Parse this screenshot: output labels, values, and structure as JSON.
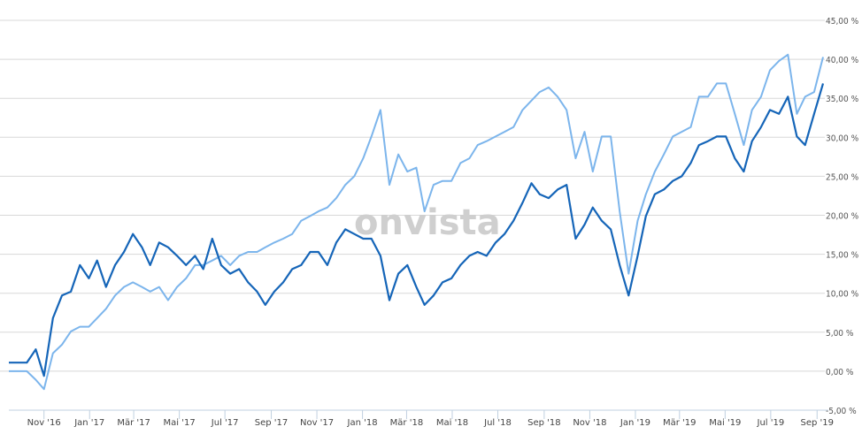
{
  "watermark": "onvista",
  "chart_data": {
    "type": "line",
    "title": "",
    "xlabel": "",
    "ylabel": "",
    "ylim": [
      -5,
      45
    ],
    "xlim": [
      "2016-09-15",
      "2019-09-09"
    ],
    "grid": true,
    "legend": "none",
    "y_ticks": [
      "45,00 %",
      "40,00 %",
      "35,00 %",
      "30,00 %",
      "25,00 %",
      "20,00 %",
      "15,00 %",
      "10,00 %",
      "5,00 %",
      "0,00 %",
      "-5,00 %"
    ],
    "y_tick_values": [
      45,
      40,
      35,
      30,
      25,
      20,
      15,
      10,
      5,
      0,
      -5
    ],
    "x_ticks": [
      {
        "label": "Nov '16",
        "date": "2016-11-01"
      },
      {
        "label": "Jan '17",
        "date": "2017-01-01"
      },
      {
        "label": "Mär '17",
        "date": "2017-03-01"
      },
      {
        "label": "Mai '17",
        "date": "2017-05-01"
      },
      {
        "label": "Jul '17",
        "date": "2017-07-01"
      },
      {
        "label": "Sep '17",
        "date": "2017-09-01"
      },
      {
        "label": "Nov '17",
        "date": "2017-11-01"
      },
      {
        "label": "Jan '18",
        "date": "2018-01-01"
      },
      {
        "label": "Mär '18",
        "date": "2018-03-01"
      },
      {
        "label": "Mai '18",
        "date": "2018-05-01"
      },
      {
        "label": "Jul '18",
        "date": "2018-07-01"
      },
      {
        "label": "Sep '18",
        "date": "2018-09-01"
      },
      {
        "label": "Nov '18",
        "date": "2018-11-01"
      },
      {
        "label": "Jan '19",
        "date": "2019-01-01"
      },
      {
        "label": "Mär '19",
        "date": "2019-03-01"
      },
      {
        "label": "Mai '19",
        "date": "2019-05-01"
      },
      {
        "label": "Jul '19",
        "date": "2019-07-01"
      },
      {
        "label": "Sep '19",
        "date": "2019-09-01"
      }
    ],
    "x": [
      "2016-09-15",
      "2016-09-27",
      "2016-10-09",
      "2016-10-21",
      "2016-11-01",
      "2016-11-13",
      "2016-11-25",
      "2016-12-07",
      "2016-12-19",
      "2016-12-31",
      "2017-01-11",
      "2017-01-23",
      "2017-02-04",
      "2017-02-16",
      "2017-02-28",
      "2017-03-12",
      "2017-03-23",
      "2017-04-04",
      "2017-04-16",
      "2017-04-28",
      "2017-05-10",
      "2017-05-22",
      "2017-06-02",
      "2017-06-14",
      "2017-06-26",
      "2017-07-08",
      "2017-07-20",
      "2017-08-01",
      "2017-08-13",
      "2017-08-24",
      "2017-09-05",
      "2017-09-17",
      "2017-09-29",
      "2017-10-11",
      "2017-10-23",
      "2017-11-03",
      "2017-11-15",
      "2017-11-27",
      "2017-12-09",
      "2017-12-21",
      "2018-01-02",
      "2018-01-13",
      "2018-01-25",
      "2018-02-06",
      "2018-02-18",
      "2018-03-02",
      "2018-03-14",
      "2018-03-25",
      "2018-04-06",
      "2018-04-18",
      "2018-04-30",
      "2018-05-12",
      "2018-05-24",
      "2018-06-04",
      "2018-06-16",
      "2018-06-28",
      "2018-07-10",
      "2018-07-22",
      "2018-08-03",
      "2018-08-15",
      "2018-08-26",
      "2018-09-07",
      "2018-09-19",
      "2018-10-01",
      "2018-10-13",
      "2018-10-25",
      "2018-11-05",
      "2018-11-17",
      "2018-11-29",
      "2018-12-11",
      "2018-12-23",
      "2019-01-04",
      "2019-01-15",
      "2019-01-27",
      "2019-02-08",
      "2019-02-20",
      "2019-03-04",
      "2019-03-16",
      "2019-03-27",
      "2019-04-08",
      "2019-04-20",
      "2019-05-02",
      "2019-05-14",
      "2019-05-26",
      "2019-06-06",
      "2019-06-18",
      "2019-06-30",
      "2019-07-12",
      "2019-07-24",
      "2019-08-05",
      "2019-08-16",
      "2019-08-28",
      "2019-09-09"
    ],
    "series": [
      {
        "color": "#1565b8",
        "values": [
          1.1,
          1.1,
          1.1,
          2.8,
          -0.6,
          6.8,
          9.7,
          10.2,
          13.6,
          11.9,
          14.2,
          10.8,
          13.6,
          15.3,
          17.6,
          15.9,
          13.6,
          16.5,
          15.9,
          14.8,
          13.6,
          14.8,
          13.1,
          17.0,
          13.6,
          12.5,
          13.1,
          11.4,
          10.2,
          8.5,
          10.2,
          11.4,
          13.1,
          13.6,
          15.3,
          15.3,
          13.6,
          16.5,
          18.2,
          17.6,
          17.0,
          17.0,
          14.8,
          9.1,
          12.5,
          13.6,
          10.8,
          8.5,
          9.7,
          11.4,
          11.9,
          13.6,
          14.8,
          15.3,
          14.8,
          16.5,
          17.6,
          19.3,
          21.6,
          24.1,
          22.7,
          22.2,
          23.3,
          23.9,
          17.0,
          18.8,
          21.0,
          19.3,
          18.2,
          13.6,
          9.7,
          14.8,
          19.9,
          22.7,
          23.3,
          24.4,
          25.0,
          26.7,
          29.0,
          29.5,
          30.1,
          30.1,
          27.3,
          25.6,
          29.5,
          31.3,
          33.5,
          33.0,
          35.2,
          30.1,
          29.0,
          33.0,
          36.9
        ]
      },
      {
        "color": "#7cb5ec",
        "values": [
          0,
          0,
          0,
          -1.1,
          -2.3,
          2.3,
          3.4,
          5.1,
          5.7,
          5.7,
          6.8,
          8.0,
          9.7,
          10.8,
          11.4,
          10.8,
          10.2,
          10.8,
          9.1,
          10.8,
          11.9,
          13.6,
          13.6,
          14.2,
          14.8,
          13.6,
          14.8,
          15.3,
          15.3,
          15.9,
          16.5,
          17.0,
          17.6,
          19.3,
          19.9,
          20.5,
          21.0,
          22.2,
          23.9,
          25.0,
          27.3,
          30.1,
          33.5,
          23.9,
          27.8,
          25.6,
          26.1,
          20.5,
          23.9,
          24.4,
          24.4,
          26.7,
          27.3,
          29.0,
          29.5,
          30.1,
          30.7,
          31.3,
          33.5,
          34.7,
          35.8,
          36.4,
          35.2,
          33.5,
          27.3,
          30.7,
          25.6,
          30.1,
          30.1,
          20.5,
          12.5,
          19.3,
          22.7,
          25.6,
          27.8,
          30.1,
          30.7,
          31.3,
          35.2,
          35.2,
          36.9,
          36.9,
          33.0,
          29.0,
          33.5,
          35.2,
          38.6,
          39.8,
          40.6,
          33.0,
          35.2,
          35.8,
          40.3
        ]
      }
    ]
  }
}
